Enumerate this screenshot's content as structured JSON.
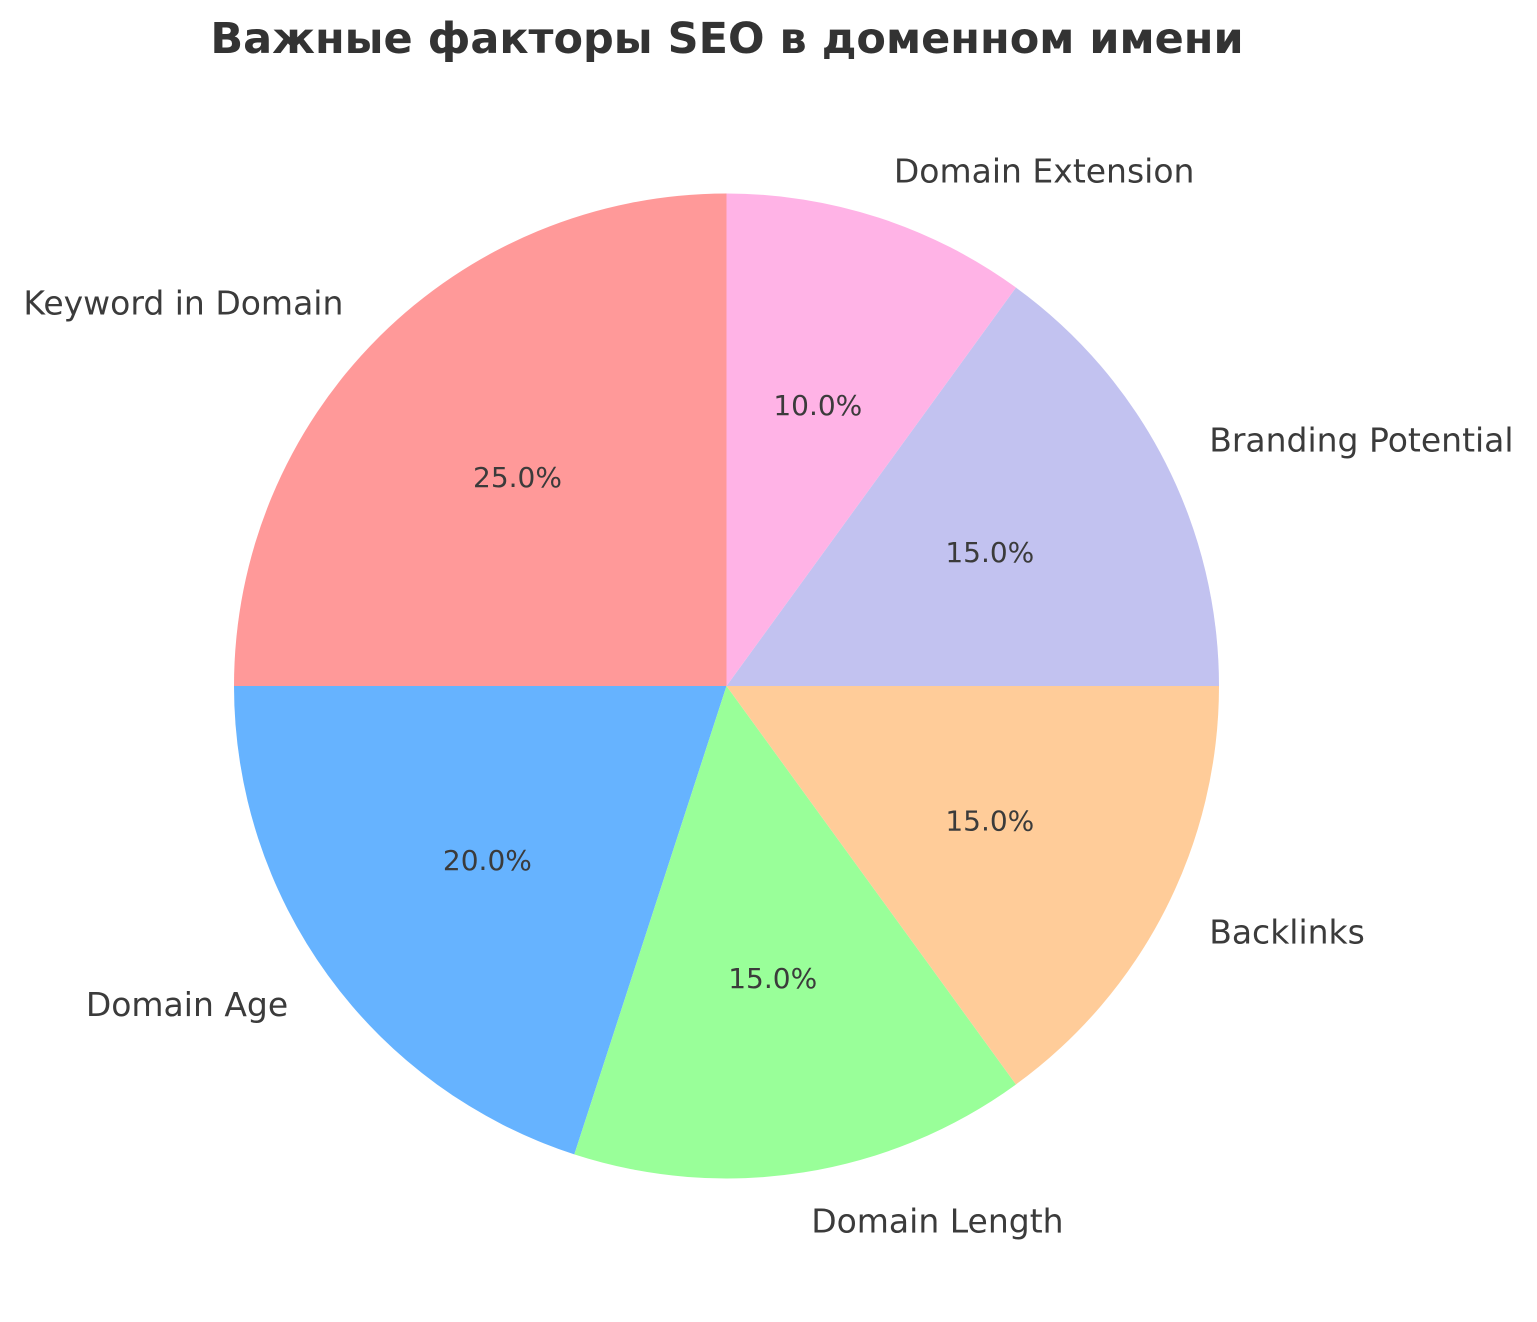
{
  "title": "Важные факторы SEO в доменном имени",
  "colors": {
    "background": "#ffffff",
    "title_text": "#333333",
    "label_text": "#3b3b3b"
  },
  "chart_data": {
    "type": "pie",
    "title": "Важные факторы SEO в доменном имени",
    "labels": [
      "Keyword in Domain",
      "Domain Age",
      "Domain Length",
      "Backlinks",
      "Branding Potential",
      "Domain Extension"
    ],
    "values": [
      25.0,
      20.0,
      15.0,
      15.0,
      15.0,
      10.0
    ],
    "percent_labels": [
      "25.0%",
      "20.0%",
      "15.0%",
      "15.0%",
      "15.0%",
      "10.0%"
    ],
    "slice_colors": [
      "#ff9999",
      "#66b3ff",
      "#99ff99",
      "#ffcc99",
      "#c2c2f0",
      "#ffb3e6"
    ],
    "start_angle_deg": 90,
    "direction": "counterclockwise",
    "label_distance": 1.1,
    "pct_distance": 0.6,
    "legend": false,
    "grid": false
  }
}
